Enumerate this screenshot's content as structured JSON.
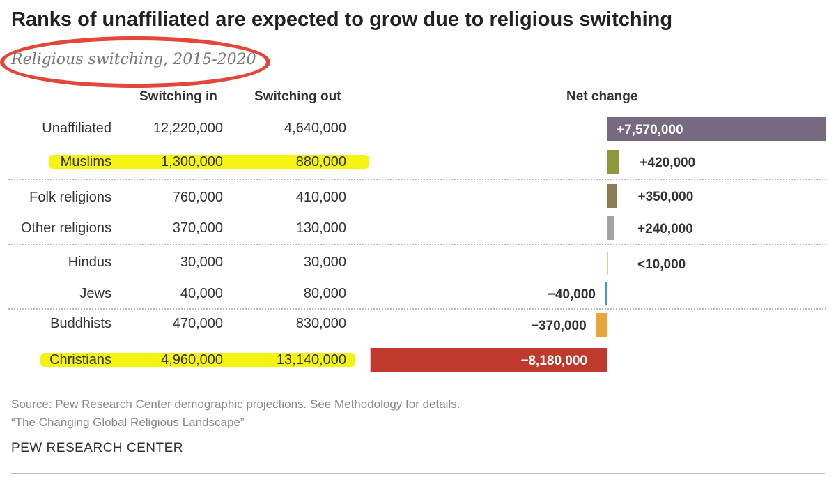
{
  "title": "Ranks of unaffiliated are expected to grow due to religious switching",
  "subtitle": "Religious switching, 2015-2020",
  "columns": {
    "switching_in": "Switching in",
    "switching_out": "Switching out",
    "net_change": "Net change"
  },
  "rows": [
    {
      "name": "Unaffiliated",
      "in": "12,220,000",
      "out": "4,640,000",
      "net_label": "+7,570,000"
    },
    {
      "name": "Muslims",
      "in": "1,300,000",
      "out": "880,000",
      "net_label": "+420,000"
    },
    {
      "name": "Folk religions",
      "in": "760,000",
      "out": "410,000",
      "net_label": "+350,000"
    },
    {
      "name": "Other religions",
      "in": "370,000",
      "out": "130,000",
      "net_label": "+240,000"
    },
    {
      "name": "Hindus",
      "in": "30,000",
      "out": "30,000",
      "net_label": "<10,000"
    },
    {
      "name": "Jews",
      "in": "40,000",
      "out": "80,000",
      "net_label": "−40,000"
    },
    {
      "name": "Buddhists",
      "in": "470,000",
      "out": "830,000",
      "net_label": "−370,000"
    },
    {
      "name": "Christians",
      "in": "4,960,000",
      "out": "13,140,000",
      "net_label": "−8,180,000"
    }
  ],
  "source": "Source: Pew Research Center demographic projections. See Methodology for details.",
  "source_line2": "“The Changing Global Religious Landscape”",
  "brand": "PEW RESEARCH CENTER",
  "colors": {
    "unaffiliated": "#776a80",
    "muslims": "#8f973c",
    "folk": "#8c7c53",
    "other": "#a3a3a3",
    "hindus": "#e9c4a3",
    "jews": "#3e9ad0",
    "buddhists": "#e9a43a",
    "christians": "#bf3a2c",
    "highlight": "#f4f311",
    "annotation": "#e4463a"
  },
  "chart_data": {
    "type": "bar",
    "categories": [
      "Unaffiliated",
      "Muslims",
      "Folk religions",
      "Other religions",
      "Hindus",
      "Jews",
      "Buddhists",
      "Christians"
    ],
    "series": [
      {
        "name": "Switching in",
        "values": [
          12220000,
          1300000,
          760000,
          370000,
          30000,
          40000,
          470000,
          4960000
        ]
      },
      {
        "name": "Switching out",
        "values": [
          4640000,
          880000,
          410000,
          130000,
          30000,
          80000,
          830000,
          13140000
        ]
      },
      {
        "name": "Net change",
        "values": [
          7570000,
          420000,
          350000,
          240000,
          5000,
          -40000,
          -370000,
          -8180000
        ]
      }
    ]
  }
}
